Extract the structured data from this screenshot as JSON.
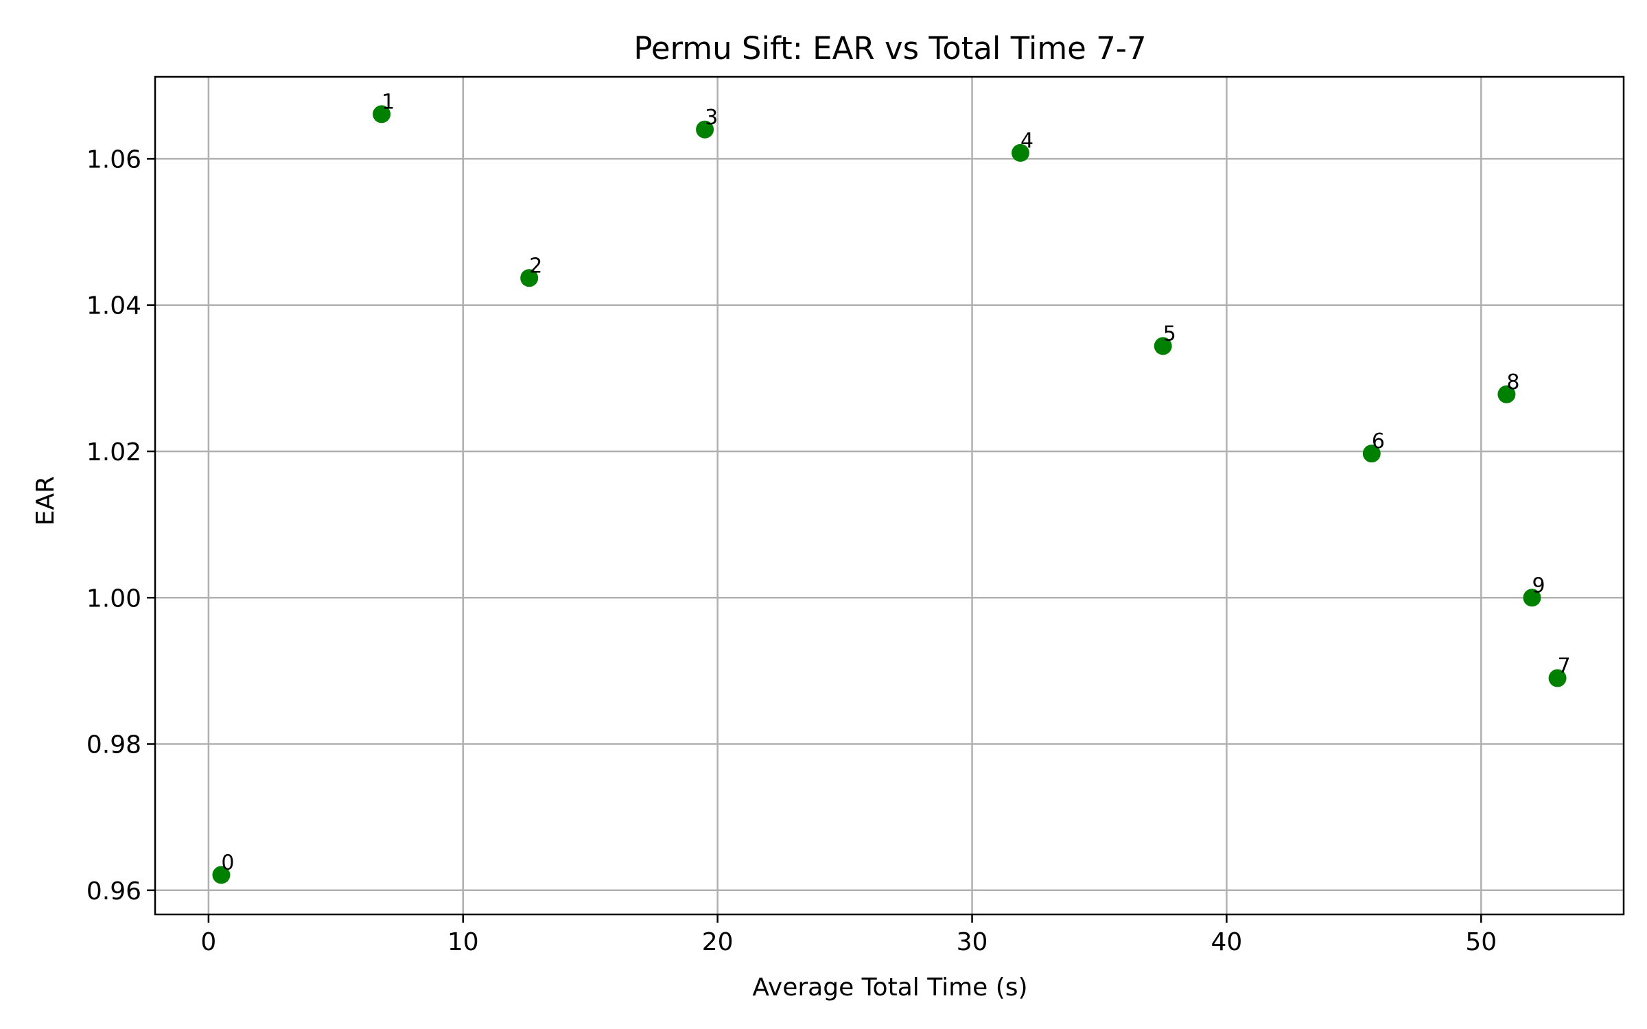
{
  "chart_data": {
    "type": "scatter",
    "title": "Permu Sift: EAR vs Total Time 7-7",
    "xlabel": "Average Total Time (s)",
    "ylabel": "EAR",
    "xlim": [
      -2.1,
      55.6
    ],
    "ylim": [
      0.9567,
      1.0712
    ],
    "xticks": [
      0,
      10,
      20,
      30,
      40,
      50
    ],
    "xtick_labels": [
      "0",
      "10",
      "20",
      "30",
      "40",
      "50"
    ],
    "yticks": [
      0.96,
      0.98,
      1.0,
      1.02,
      1.04,
      1.06
    ],
    "ytick_labels": [
      "0.96",
      "0.98",
      "1.00",
      "1.02",
      "1.04",
      "1.06"
    ],
    "grid": true,
    "marker_color": "#008000",
    "points": [
      {
        "label": "0",
        "x": 0.5,
        "y": 0.9621
      },
      {
        "label": "1",
        "x": 6.8,
        "y": 1.0661
      },
      {
        "label": "2",
        "x": 12.6,
        "y": 1.0437
      },
      {
        "label": "3",
        "x": 19.5,
        "y": 1.064
      },
      {
        "label": "4",
        "x": 31.9,
        "y": 1.0608
      },
      {
        "label": "5",
        "x": 37.5,
        "y": 1.0344
      },
      {
        "label": "6",
        "x": 45.7,
        "y": 1.0197
      },
      {
        "label": "7",
        "x": 53.0,
        "y": 0.989
      },
      {
        "label": "8",
        "x": 51.0,
        "y": 1.0278
      },
      {
        "label": "9",
        "x": 52.0,
        "y": 1.0
      }
    ]
  }
}
